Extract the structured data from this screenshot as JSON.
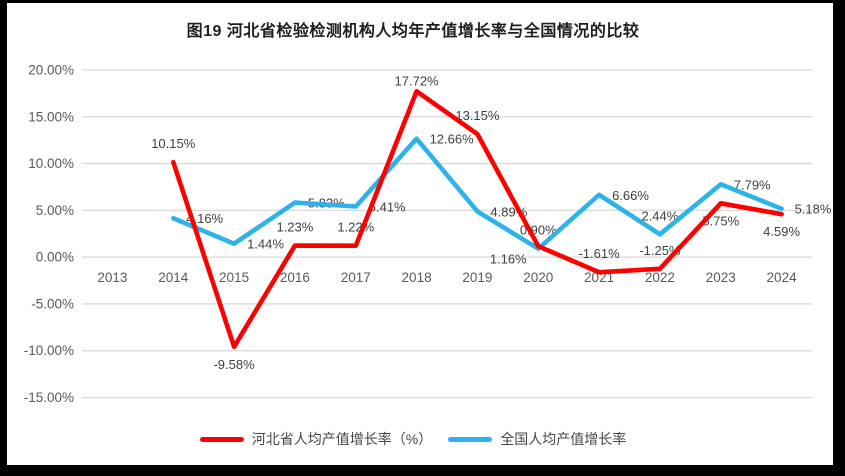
{
  "title": "图19  河北省检验检测机构人均年产值增长率与全国情况的比较",
  "chart_data": {
    "type": "line",
    "categories": [
      "2013",
      "2014",
      "2015",
      "2016",
      "2017",
      "2018",
      "2019",
      "2020",
      "2021",
      "2022",
      "2023",
      "2024"
    ],
    "series": [
      {
        "name": "河北省人均产值增长率（%）",
        "color": "#FF0000",
        "values": [
          null,
          10.15,
          -9.58,
          1.23,
          1.22,
          17.72,
          13.15,
          1.16,
          -1.61,
          -1.25,
          5.75,
          4.59
        ],
        "label_positions": [
          null,
          "above",
          "below",
          "above",
          "above",
          "above-near",
          "above",
          "below-left",
          "above",
          "above",
          "below",
          "below"
        ]
      },
      {
        "name": "全国人均产值增长率",
        "color": "#2EB2EA",
        "values": [
          null,
          4.16,
          1.44,
          5.83,
          5.41,
          12.66,
          4.89,
          0.9,
          6.66,
          2.44,
          7.79,
          5.18
        ],
        "label_positions": [
          null,
          "right",
          "right",
          "right",
          "right",
          "right",
          "right",
          "above",
          "right",
          "above",
          "right",
          "right"
        ]
      }
    ],
    "y_axis": {
      "min": -15,
      "max": 20,
      "step": 5,
      "tick_labels": [
        "20.00%",
        "15.00%",
        "10.00%",
        "5.00%",
        "0.00%",
        "-5.00%",
        "-10.00%",
        "-15.00%"
      ]
    },
    "x_axis": {
      "label_format": "year"
    },
    "grid": true,
    "legend_position": "bottom",
    "label_suffix": "%",
    "colors": {
      "gridline": "#D9D9D9",
      "axis_label": "#595959",
      "data_label": "#404040",
      "title": "#1F1F1F",
      "frame_border": "#000000",
      "background": "#FFFFFF"
    }
  }
}
